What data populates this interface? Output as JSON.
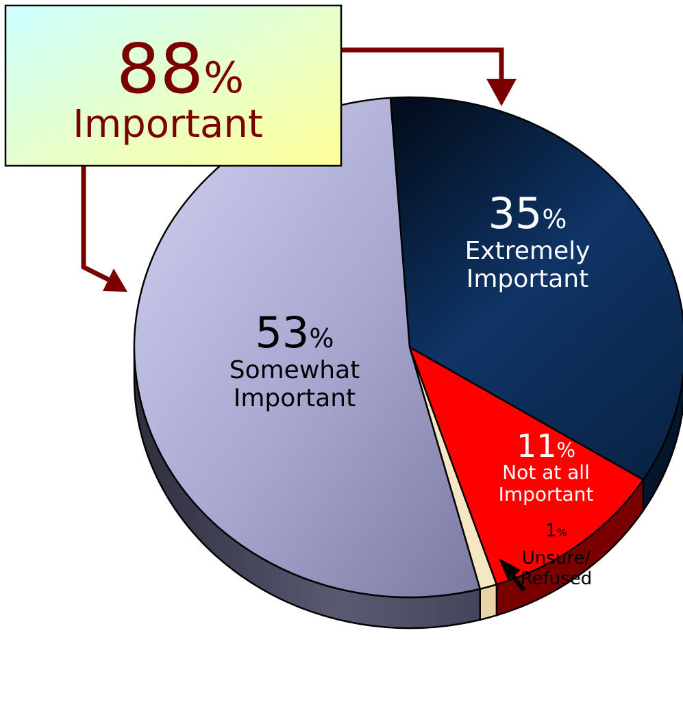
{
  "chart_data": {
    "type": "pie",
    "style": "3d",
    "slices": [
      {
        "key": "extremely",
        "value": 35,
        "percent": "35%",
        "label_lines": [
          "Extremely",
          "Important"
        ],
        "color": "#0f2f5c",
        "side_color": "#05152b"
      },
      {
        "key": "not_at_all",
        "value": 11,
        "percent": "11%",
        "label_lines": [
          "Not at all",
          "Important"
        ],
        "color": "#ff0000",
        "side_color": "#7a0000"
      },
      {
        "key": "unsure",
        "value": 1,
        "percent": "1%",
        "label_lines": [
          "Unsure/",
          "Refused"
        ],
        "color": "#f7e6c2",
        "side_color": "#e8d3a6"
      },
      {
        "key": "somewhat",
        "value": 53,
        "percent": "53%",
        "label_lines": [
          "Somewhat",
          "Important"
        ],
        "color": "#b4b4de",
        "side_color": "#5a5a70"
      }
    ],
    "callout": {
      "percent": "88%",
      "label": "Important",
      "combines": [
        "extremely",
        "somewhat"
      ],
      "text_color": "#7a0000",
      "box_gradient": [
        "#ccffff",
        "#ffff99"
      ],
      "arrow_color": "#7a0000"
    }
  }
}
